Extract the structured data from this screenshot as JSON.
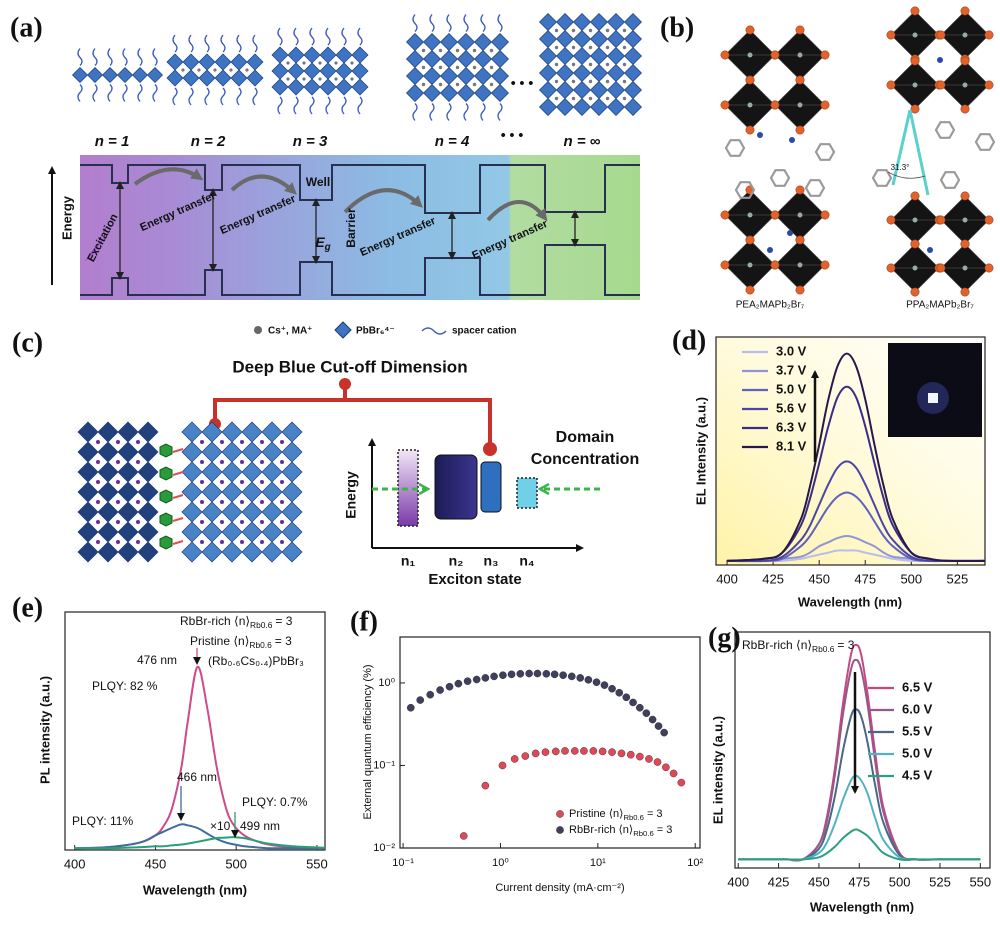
{
  "panel_a": {
    "label": "(a)",
    "n_labels": [
      "n = 1",
      "n = 2",
      "n = 3",
      "n = 4",
      "n = ∞"
    ],
    "ellipsis": "• • •",
    "energy_axis": "Energy",
    "excitation": "Excitation",
    "energy_transfer": [
      "Energy transfer",
      "Energy transfer",
      "Energy transfer",
      "Energy transfer"
    ],
    "well": "Well",
    "barrier": "Barrier",
    "eg": [
      "E",
      "g"
    ]
  },
  "panel_b": {
    "label": "(b)",
    "captions": [
      "PEA₂MAPb₂Br₇",
      "PPA₂MAPb₂Br₇"
    ],
    "angle": "31.3°"
  },
  "panel_c": {
    "label": "(c)",
    "legend": [
      "Cs⁺, MA⁺",
      "PbBr₆⁴⁻",
      "spacer cation"
    ],
    "title": "Deep Blue Cut-off Dimension",
    "domain": [
      "Domain",
      "Concentration"
    ],
    "y_label": "Energy",
    "x_label": "Exciton state",
    "states": [
      "n₁",
      "n₂",
      "n₃",
      "n₄"
    ]
  },
  "chart_data": [
    {
      "type": "line",
      "label": "(d)",
      "x_label": "Wavelength (nm)",
      "y_label": "EL Intensity (a.u.)",
      "x": [
        400,
        420,
        430,
        440,
        445,
        450,
        455,
        460,
        465,
        470,
        475,
        480,
        485,
        490,
        500,
        510,
        520,
        540
      ],
      "xlim": [
        394,
        540
      ],
      "xticks": [
        400,
        425,
        450,
        475,
        500,
        525
      ],
      "ylim": [
        0,
        1.1
      ],
      "legend": "upper left",
      "series": [
        {
          "name": "3.0 V",
          "color": "#b9bde9",
          "values": [
            0.02,
            0.02,
            0.02,
            0.03,
            0.04,
            0.05,
            0.06,
            0.07,
            0.07,
            0.07,
            0.06,
            0.05,
            0.04,
            0.03,
            0.02,
            0.02,
            0.02,
            0.02
          ]
        },
        {
          "name": "3.7 V",
          "color": "#8f95d8",
          "values": [
            0.02,
            0.02,
            0.03,
            0.04,
            0.06,
            0.09,
            0.11,
            0.13,
            0.14,
            0.13,
            0.11,
            0.09,
            0.06,
            0.04,
            0.03,
            0.02,
            0.02,
            0.02
          ]
        },
        {
          "name": "5.0 V",
          "color": "#5e62c0",
          "values": [
            0.02,
            0.02,
            0.03,
            0.09,
            0.14,
            0.21,
            0.28,
            0.33,
            0.35,
            0.33,
            0.28,
            0.21,
            0.14,
            0.09,
            0.03,
            0.02,
            0.02,
            0.02
          ]
        },
        {
          "name": "5.6 V",
          "color": "#4a45a6",
          "values": [
            0.02,
            0.02,
            0.04,
            0.12,
            0.19,
            0.29,
            0.39,
            0.47,
            0.5,
            0.47,
            0.39,
            0.29,
            0.19,
            0.12,
            0.04,
            0.02,
            0.02,
            0.02
          ]
        },
        {
          "name": "6.3 V",
          "color": "#3a2e84",
          "values": [
            0.02,
            0.03,
            0.06,
            0.19,
            0.32,
            0.49,
            0.67,
            0.81,
            0.86,
            0.81,
            0.67,
            0.49,
            0.32,
            0.19,
            0.06,
            0.03,
            0.02,
            0.02
          ]
        },
        {
          "name": "8.1 V",
          "color": "#28184a",
          "values": [
            0.02,
            0.03,
            0.06,
            0.22,
            0.38,
            0.58,
            0.8,
            0.96,
            1.02,
            0.96,
            0.8,
            0.58,
            0.38,
            0.22,
            0.06,
            0.03,
            0.02,
            0.02
          ]
        }
      ]
    },
    {
      "type": "line",
      "label": "(e)",
      "x_label": "Wavelength (nm)",
      "y_label": "PL intensity (a.u.)",
      "x": [
        400,
        420,
        440,
        450,
        455,
        460,
        466,
        470,
        476,
        482,
        488,
        494,
        499,
        505,
        512,
        520,
        535,
        555
      ],
      "xlim": [
        394,
        555
      ],
      "xticks": [
        400,
        450,
        500,
        550
      ],
      "ylim": [
        0,
        1.3
      ],
      "series": [
        {
          "name": [
            "RbBr-rich ⟨n⟩",
            "Rb0.6",
            "= 3"
          ],
          "color": "#cf4a8a",
          "values": [
            0.01,
            0.015,
            0.04,
            0.08,
            0.13,
            0.22,
            0.45,
            0.7,
            1.0,
            0.78,
            0.45,
            0.22,
            0.13,
            0.08,
            0.05,
            0.03,
            0.015,
            0.01
          ]
        },
        {
          "name": [
            "Pristine ⟨n⟩",
            "Rb0.6",
            "= 3"
          ],
          "color": "#3d6c9e",
          "values": [
            0.01,
            0.015,
            0.04,
            0.08,
            0.1,
            0.12,
            0.14,
            0.135,
            0.12,
            0.09,
            0.06,
            0.04,
            0.03,
            0.02,
            0.015,
            0.01,
            0.01,
            0.01
          ]
        },
        {
          "name": "(Rb₀.₆Cs₀.₄)PbBr₃",
          "color": "#27a07a",
          "values": [
            0.01,
            0.01,
            0.015,
            0.02,
            0.02,
            0.025,
            0.03,
            0.035,
            0.045,
            0.055,
            0.065,
            0.068,
            0.07,
            0.065,
            0.05,
            0.035,
            0.02,
            0.012
          ]
        }
      ],
      "annotations": [
        {
          "text": "476 nm",
          "color": "#cf4a8a"
        },
        {
          "text": "PLQY: 82 %",
          "color": "#cf4a8a"
        },
        {
          "text": "466 nm",
          "color": "#3d6c9e"
        },
        {
          "text": "PLQY: 11%",
          "color": "#3d6c9e"
        },
        {
          "text": "PLQY: 0.7%",
          "color": "#27a07a"
        },
        {
          "text": "×10",
          "color": "#3d6c9e"
        },
        {
          "text": "499 nm",
          "color": "#27a07a"
        }
      ]
    },
    {
      "type": "scatter",
      "label": "(f)",
      "x_label": "Current density (mA·cm⁻²)",
      "y_label": "External quantum efficiency (%)",
      "xlog": true,
      "ylog": true,
      "xlim": [
        0.093,
        112
      ],
      "ylim": [
        0.01,
        3.6
      ],
      "xticks": [
        {
          "value": 0.1,
          "label": "10⁻¹"
        },
        {
          "value": 1,
          "label": "10⁰"
        },
        {
          "value": 10,
          "label": "10¹"
        },
        {
          "value": 100,
          "label": "10²"
        }
      ],
      "yticks": [
        {
          "value": 0.01,
          "label": "10⁻²"
        },
        {
          "value": 0.1,
          "label": "10⁻¹"
        },
        {
          "value": 1,
          "label": "10⁰"
        }
      ],
      "legend": "lower right",
      "series": [
        {
          "name": [
            "Pristine ⟨n⟩",
            "Rb0.6",
            "= 3"
          ],
          "color": "#e0485a",
          "x": [
            0.42,
            0.7,
            1.05,
            1.4,
            1.8,
            2.3,
            2.9,
            3.7,
            4.6,
            5.8,
            7.2,
            9,
            11.2,
            14,
            17.5,
            21.8,
            27,
            33.5,
            41,
            50,
            60,
            72
          ],
          "values": [
            0.014,
            0.057,
            0.1,
            0.12,
            0.13,
            0.14,
            0.145,
            0.148,
            0.15,
            0.15,
            0.15,
            0.15,
            0.148,
            0.145,
            0.14,
            0.135,
            0.128,
            0.12,
            0.11,
            0.095,
            0.08,
            0.062
          ]
        },
        {
          "name": [
            "RbBr-rich ⟨n⟩",
            "Rb0.6",
            "= 3"
          ],
          "color": "#40405e",
          "x": [
            0.12,
            0.15,
            0.19,
            0.24,
            0.3,
            0.37,
            0.46,
            0.57,
            0.7,
            0.86,
            1.06,
            1.3,
            1.6,
            1.97,
            2.4,
            2.96,
            3.6,
            4.4,
            5.4,
            6.6,
            8,
            9.7,
            11.7,
            14,
            16.6,
            19.6,
            23,
            27,
            31.5,
            36.5,
            42,
            48
          ],
          "values": [
            0.5,
            0.62,
            0.72,
            0.82,
            0.9,
            0.98,
            1.05,
            1.1,
            1.15,
            1.2,
            1.24,
            1.27,
            1.29,
            1.3,
            1.3,
            1.29,
            1.27,
            1.24,
            1.2,
            1.15,
            1.09,
            1.02,
            0.94,
            0.85,
            0.76,
            0.67,
            0.58,
            0.5,
            0.43,
            0.36,
            0.3,
            0.25
          ]
        }
      ]
    },
    {
      "type": "line",
      "label": "(g)",
      "x_label": "Wavelength (nm)",
      "y_label": "EL intensity (a.u.)",
      "annotation": [
        "RbBr-rich ⟨n⟩",
        "Rb0.6",
        "= 3"
      ],
      "x": [
        400,
        420,
        430,
        440,
        450,
        455,
        460,
        465,
        470,
        473,
        476,
        480,
        485,
        490,
        500,
        510,
        525,
        550
      ],
      "xlim": [
        398,
        556
      ],
      "xticks": [
        400,
        425,
        450,
        475,
        500,
        525,
        550
      ],
      "ylim": [
        0,
        1.1
      ],
      "legend": "upper right",
      "series": [
        {
          "name": "6.5 V",
          "color": "#c8487e",
          "values": [
            0.04,
            0.04,
            0.04,
            0.04,
            0.11,
            0.24,
            0.47,
            0.77,
            1.0,
            1.04,
            1.0,
            0.82,
            0.53,
            0.28,
            0.07,
            0.04,
            0.04,
            0.04
          ]
        },
        {
          "name": "6.0 V",
          "color": "#975889",
          "values": [
            0.04,
            0.04,
            0.04,
            0.04,
            0.11,
            0.22,
            0.44,
            0.72,
            0.93,
            0.97,
            0.93,
            0.77,
            0.49,
            0.26,
            0.06,
            0.04,
            0.04,
            0.04
          ]
        },
        {
          "name": "5.5 V",
          "color": "#4a6788",
          "values": [
            0.04,
            0.04,
            0.04,
            0.04,
            0.09,
            0.18,
            0.34,
            0.55,
            0.71,
            0.74,
            0.71,
            0.59,
            0.38,
            0.21,
            0.06,
            0.04,
            0.04,
            0.04
          ]
        },
        {
          "name": "5.0 V",
          "color": "#4fb3c4",
          "values": [
            0.04,
            0.04,
            0.04,
            0.04,
            0.07,
            0.12,
            0.21,
            0.32,
            0.41,
            0.43,
            0.41,
            0.35,
            0.23,
            0.13,
            0.05,
            0.04,
            0.04,
            0.04
          ]
        },
        {
          "name": "4.5 V",
          "color": "#2aa080",
          "values": [
            0.04,
            0.04,
            0.04,
            0.04,
            0.05,
            0.07,
            0.1,
            0.14,
            0.17,
            0.18,
            0.17,
            0.15,
            0.11,
            0.07,
            0.04,
            0.04,
            0.04,
            0.04
          ]
        }
      ]
    }
  ]
}
